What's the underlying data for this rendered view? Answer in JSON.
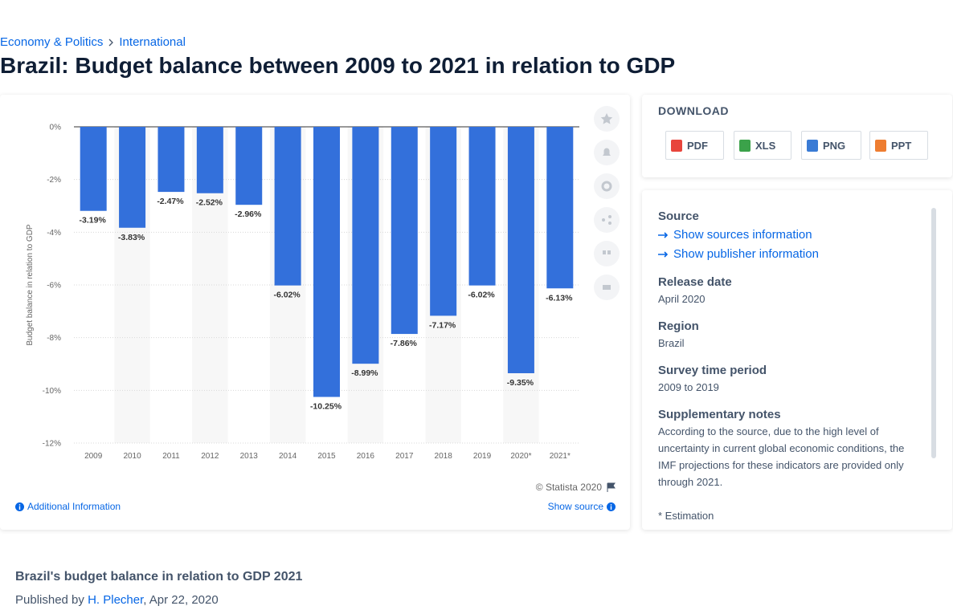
{
  "breadcrumb": [
    "Economy & Politics",
    "International"
  ],
  "title": "Brazil: Budget balance between 2009 to 2021 in relation to GDP",
  "chart_data": {
    "type": "bar",
    "categories": [
      "2009",
      "2010",
      "2011",
      "2012",
      "2013",
      "2014",
      "2015",
      "2016",
      "2017",
      "2018",
      "2019",
      "2020*",
      "2021*"
    ],
    "values": [
      -3.19,
      -3.83,
      -2.47,
      -2.52,
      -2.96,
      -6.02,
      -10.25,
      -8.99,
      -7.86,
      -7.17,
      -6.02,
      -9.35,
      -6.13
    ],
    "value_labels": [
      "-3.19%",
      "-3.83%",
      "-2.47%",
      "-2.52%",
      "-2.96%",
      "-6.02%",
      "-10.25%",
      "-8.99%",
      "-7.86%",
      "-7.17%",
      "-6.02%",
      "-9.35%",
      "-6.13%"
    ],
    "color": "#3370db",
    "y_label": "Budget balance in relation to GDP",
    "ylim": [
      -12,
      0
    ],
    "yticks": [
      {
        "value": 0,
        "label": "0%"
      },
      {
        "value": -2,
        "label": "-2%"
      },
      {
        "value": -4,
        "label": "-4%"
      },
      {
        "value": -6,
        "label": "-6%"
      },
      {
        "value": -8,
        "label": "-8%"
      },
      {
        "value": -10,
        "label": "-10%"
      },
      {
        "value": -12,
        "label": "-12%"
      }
    ],
    "grid": true
  },
  "chart_footer": {
    "credit": "© Statista 2020",
    "additional_information": "Additional Information",
    "show_source": "Show source"
  },
  "download": {
    "heading": "DOWNLOAD",
    "formats": [
      "PDF",
      "XLS",
      "PNG",
      "PPT"
    ]
  },
  "details": {
    "source": {
      "label": "Source",
      "links": [
        "Show sources information",
        "Show publisher information"
      ]
    },
    "release_date": {
      "label": "Release date",
      "value": "April 2020"
    },
    "region": {
      "label": "Region",
      "value": "Brazil"
    },
    "survey_time_period": {
      "label": "Survey time period",
      "value": "2009 to 2019"
    },
    "supplementary_notes": {
      "label": "Supplementary notes",
      "text": "According to the source, due to the high level of uncertainty in current global economic conditions, the IMF projections for these indicators are provided only through 2021.",
      "footnote": "* Estimation"
    }
  },
  "article": {
    "title": "Brazil's budget balance in relation to GDP 2021",
    "published_by": "Published by",
    "author": "H. Plecher",
    "date": ", Apr 22, 2020"
  }
}
